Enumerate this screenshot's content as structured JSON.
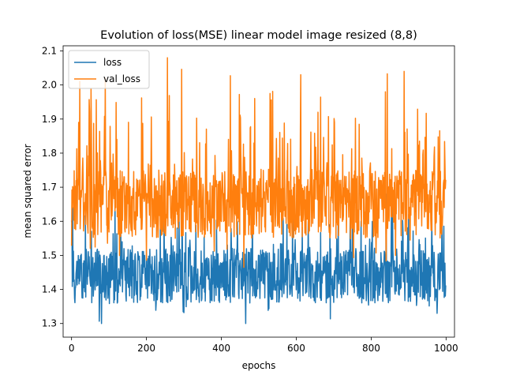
{
  "chart_data": {
    "type": "line",
    "title": "Evolution of loss(MSE) linear model image resized (8,8)",
    "xlabel": "epochs",
    "ylabel": "mean squared error",
    "xlim": [
      -22.5,
      1022.5
    ],
    "ylim": [
      1.26,
      2.115
    ],
    "xticks": [
      0,
      200,
      400,
      600,
      800,
      1000
    ],
    "yticks": [
      1.3,
      1.4,
      1.5,
      1.6,
      1.7,
      1.8,
      1.9,
      2.0,
      2.1
    ],
    "grid": false,
    "legend_position": "top-left",
    "n_epochs": 1000,
    "series": [
      {
        "name": "loss",
        "color": "#1f77b4",
        "summary": {
          "mean": 1.44,
          "min": 1.3,
          "max": 1.68,
          "start": 1.6,
          "end": 1.41
        },
        "sampled": {
          "x": [
            0,
            50,
            100,
            150,
            200,
            250,
            300,
            350,
            400,
            450,
            500,
            550,
            600,
            650,
            700,
            750,
            800,
            850,
            900,
            950,
            999
          ],
          "y": [
            1.6,
            1.43,
            1.46,
            1.44,
            1.45,
            1.43,
            1.44,
            1.45,
            1.43,
            1.44,
            1.42,
            1.44,
            1.45,
            1.43,
            1.44,
            1.45,
            1.44,
            1.46,
            1.43,
            1.44,
            1.41
          ]
        }
      },
      {
        "name": "val_loss",
        "color": "#ff7f0e",
        "summary": {
          "mean": 1.65,
          "min": 1.43,
          "max": 2.08,
          "start": 1.53,
          "end": 1.72
        },
        "sampled": {
          "x": [
            0,
            50,
            100,
            150,
            200,
            250,
            300,
            350,
            400,
            450,
            500,
            550,
            600,
            650,
            700,
            750,
            800,
            850,
            900,
            950,
            999
          ],
          "y": [
            1.53,
            1.66,
            1.64,
            1.65,
            1.66,
            1.67,
            1.64,
            1.65,
            1.66,
            1.64,
            1.65,
            1.66,
            1.65,
            1.64,
            1.66,
            1.65,
            1.64,
            1.66,
            1.65,
            1.64,
            1.72
          ]
        }
      }
    ]
  }
}
